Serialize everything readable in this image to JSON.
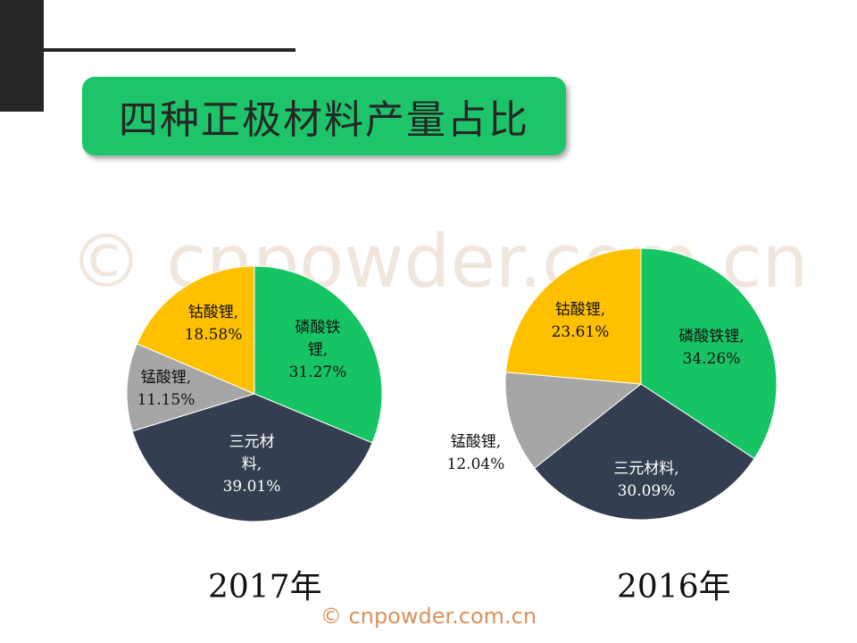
{
  "title": "四种正极材料产量占比",
  "watermark": "© cnpowder.com.cn",
  "footer": "© cnpowder.com.cn",
  "colors": {
    "lfp": "#16c464",
    "ncm": "#333f50",
    "lmo": "#a6a6a6",
    "lco": "#ffc000",
    "title_bg": "#1ec46a"
  },
  "chart_data": [
    {
      "type": "pie",
      "title": "2017年",
      "slices": [
        {
          "name": "磷酸铁锂",
          "value": 31.27,
          "label_line1": "磷酸铁",
          "label_line2": "锂,",
          "pct": "31.27%",
          "color": "#16c464",
          "text_color": "#111111"
        },
        {
          "name": "三元材料",
          "value": 39.01,
          "label_line1": "三元材",
          "label_line2": "料,",
          "pct": "39.01%",
          "color": "#333f50",
          "text_color": "#ffffff"
        },
        {
          "name": "锰酸锂",
          "value": 11.15,
          "label_line1": "锰酸锂,",
          "label_line2": "",
          "pct": "11.15%",
          "color": "#a6a6a6",
          "text_color": "#111111"
        },
        {
          "name": "钴酸锂",
          "value": 18.58,
          "label_line1": "钴酸锂,",
          "label_line2": "",
          "pct": "18.58%",
          "color": "#ffc000",
          "text_color": "#111111"
        }
      ]
    },
    {
      "type": "pie",
      "title": "2016年",
      "slices": [
        {
          "name": "磷酸铁锂",
          "value": 34.26,
          "label_line1": "磷酸铁锂,",
          "label_line2": "",
          "pct": "34.26%",
          "color": "#16c464",
          "text_color": "#111111"
        },
        {
          "name": "三元材料",
          "value": 30.09,
          "label_line1": "三元材料,",
          "label_line2": "",
          "pct": "30.09%",
          "color": "#333f50",
          "text_color": "#ffffff"
        },
        {
          "name": "锰酸锂",
          "value": 12.04,
          "label_line1": "锰酸锂,",
          "label_line2": "",
          "pct": "12.04%",
          "color": "#a6a6a6",
          "text_color": "#111111"
        },
        {
          "name": "钴酸锂",
          "value": 23.61,
          "label_line1": "钴酸锂,",
          "label_line2": "",
          "pct": "23.61%",
          "color": "#ffc000",
          "text_color": "#111111"
        }
      ]
    }
  ]
}
